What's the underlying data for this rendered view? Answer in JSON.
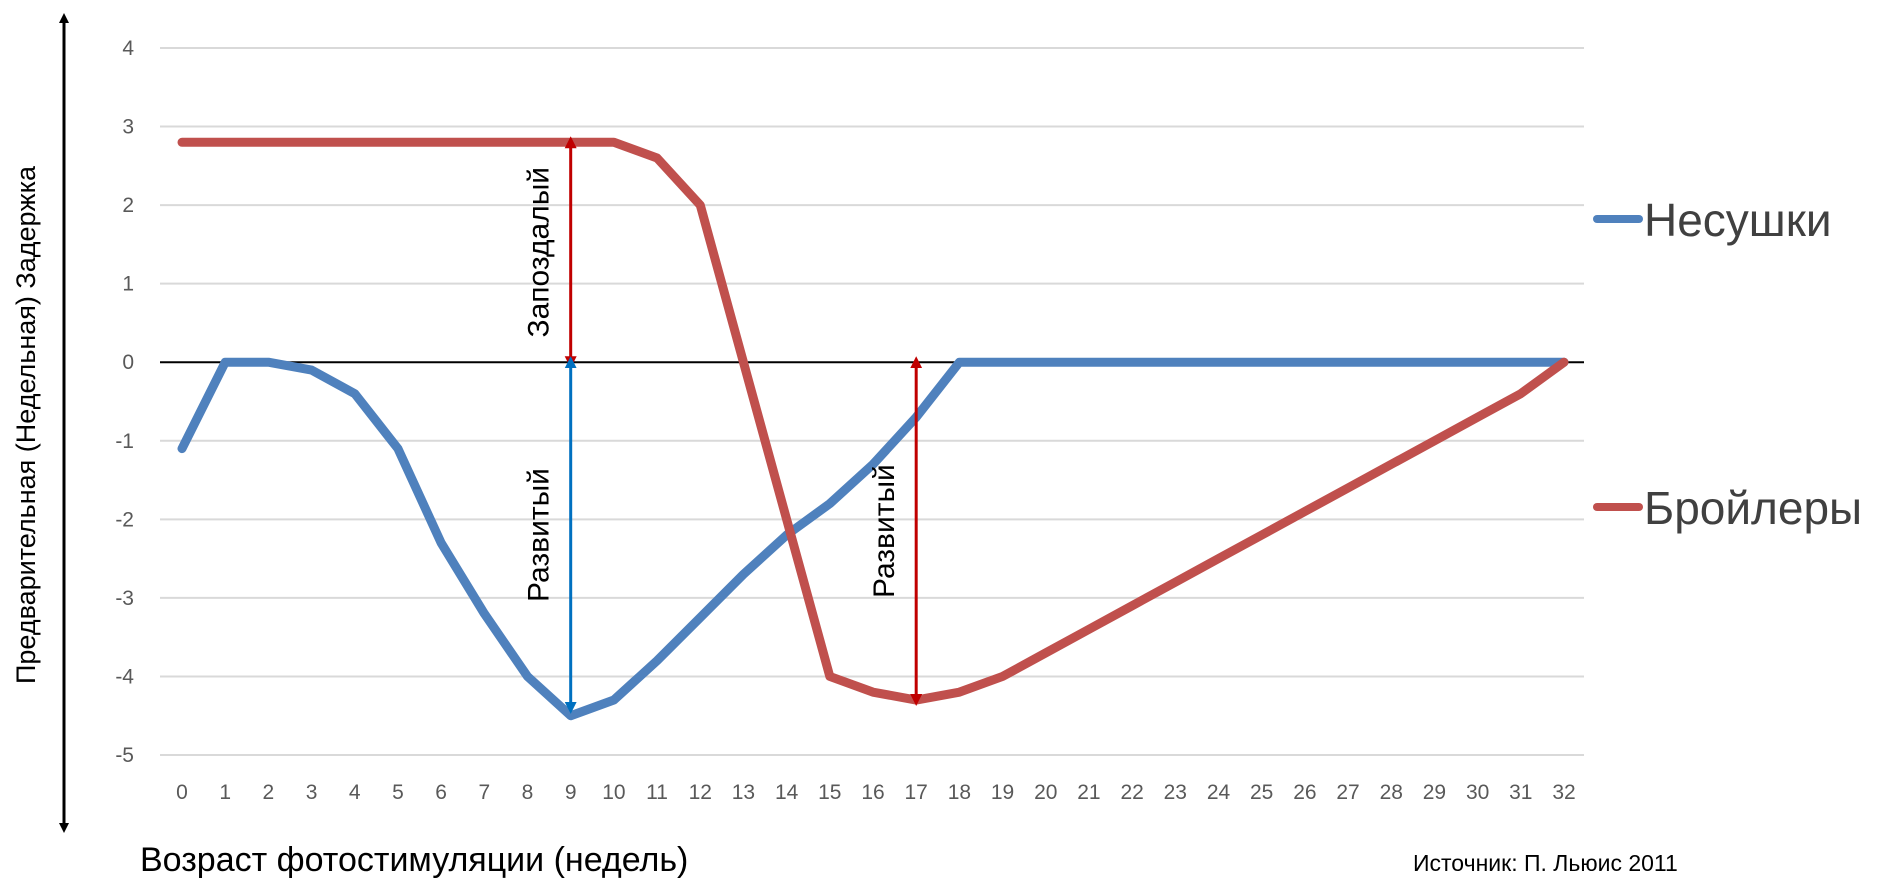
{
  "chart_data": {
    "type": "line",
    "xlabel": "Возраст фотостимуляции (недель)",
    "ylabel": "Предварительная (Недельная) Задержка",
    "x": [
      0,
      1,
      2,
      3,
      4,
      5,
      6,
      7,
      8,
      9,
      10,
      11,
      12,
      13,
      14,
      15,
      16,
      17,
      18,
      19,
      20,
      21,
      22,
      23,
      24,
      25,
      26,
      27,
      28,
      29,
      30,
      31,
      32
    ],
    "xlim": [
      0,
      32
    ],
    "ylim": [
      -5,
      4
    ],
    "yticks": [
      4,
      3,
      2,
      1,
      0,
      -1,
      -2,
      -3,
      -4,
      -5
    ],
    "grid": true,
    "legend_position": "right",
    "series": [
      {
        "name": "Несушки",
        "color": "#4f81bd",
        "values": [
          -1.1,
          0,
          0,
          -0.1,
          -0.4,
          -1.1,
          -2.3,
          -3.2,
          -4,
          -4.5,
          -4.3,
          -3.8,
          -3.25,
          -2.7,
          -2.2,
          -1.8,
          -1.3,
          -0.7,
          0,
          0,
          0,
          0,
          0,
          0,
          0,
          0,
          0,
          0,
          0,
          0,
          0,
          0,
          0
        ]
      },
      {
        "name": "Бройлеры",
        "color": "#c0504d",
        "values": [
          2.8,
          2.8,
          2.8,
          2.8,
          2.8,
          2.8,
          2.8,
          2.8,
          2.8,
          2.8,
          2.8,
          2.6,
          2,
          0,
          -2,
          -4,
          -4.2,
          -4.3,
          -4.2,
          -4,
          -3.7,
          -3.4,
          -3.1,
          -2.8,
          -2.5,
          -2.2,
          -1.9,
          -1.6,
          -1.3,
          -1,
          -0.7,
          -0.4,
          0
        ]
      }
    ],
    "annotations": [
      {
        "text": "Запоздалый",
        "x": 9,
        "from": 0,
        "to": 2.8,
        "color": "#c00000"
      },
      {
        "text": "Развитый",
        "x": 9,
        "from": 0,
        "to": -4.4,
        "color": "#0070c0"
      },
      {
        "text": "Развитый",
        "x": 17,
        "from": 0,
        "to": -4.3,
        "color": "#c00000"
      }
    ],
    "source": "Источник: П. Льюис 2011"
  }
}
